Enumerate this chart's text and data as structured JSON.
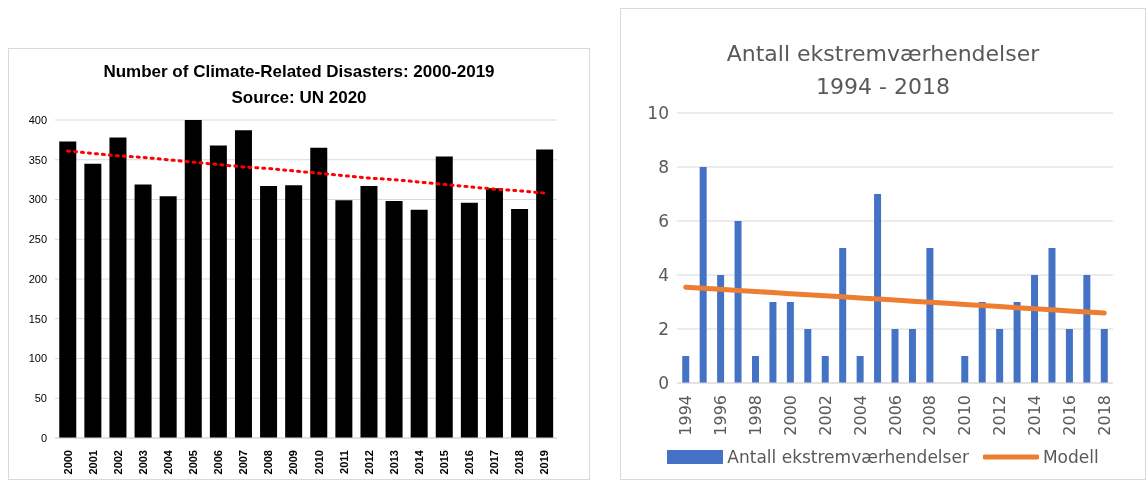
{
  "chart_data": [
    {
      "type": "bar",
      "title": "Number of Climate-Related Disasters: 2000-2019",
      "subtitle": "Source: UN 2020",
      "categories": [
        "2000",
        "2001",
        "2002",
        "2003",
        "2004",
        "2005",
        "2006",
        "2007",
        "2008",
        "2009",
        "2010",
        "2011",
        "2012",
        "2013",
        "2014",
        "2015",
        "2016",
        "2017",
        "2018",
        "2019"
      ],
      "series": [
        {
          "color": "#000000",
          "values": [
            373,
            345,
            378,
            319,
            304,
            400,
            368,
            387,
            317,
            318,
            365,
            299,
            317,
            298,
            287,
            354,
            296,
            314,
            288,
            363
          ]
        },
        {
          "type": "line",
          "color": "#ff0000",
          "line_style": "dotted",
          "values": [
            361,
            358,
            355,
            353,
            350,
            347,
            344,
            341,
            339,
            336,
            333,
            330,
            327,
            325,
            322,
            319,
            316,
            313,
            311,
            308
          ]
        }
      ],
      "ylim": [
        0,
        400
      ],
      "yticks": [
        0,
        50,
        100,
        150,
        200,
        250,
        300,
        350,
        400
      ],
      "grid": "y",
      "legend": false,
      "marker": "none"
    },
    {
      "type": "bar",
      "title": "Antall ekstremværhendelser",
      "subtitle": "1994 - 2018",
      "categories": [
        "1994",
        null,
        "1996",
        null,
        "1998",
        null,
        "2000",
        null,
        "2002",
        null,
        "2004",
        null,
        "2006",
        null,
        "2008",
        null,
        "2010",
        null,
        "2012",
        null,
        "2014",
        null,
        "2016",
        null,
        "2018"
      ],
      "series": [
        {
          "name": "Antall ekstremværhendelser",
          "color": "#4472c4",
          "values": [
            1,
            8,
            4,
            6,
            1,
            3,
            3,
            2,
            1,
            5,
            1,
            7,
            2,
            2,
            5,
            0,
            1,
            3,
            2,
            3,
            4,
            5,
            2,
            4,
            2
          ]
        },
        {
          "type": "line",
          "name": "Modell",
          "color": "#ed7d31",
          "line_style": "solid",
          "values": [
            3.55,
            3.51,
            3.47,
            3.43,
            3.39,
            3.35,
            3.31,
            3.27,
            3.23,
            3.19,
            3.15,
            3.11,
            3.07,
            3.03,
            2.99,
            2.95,
            2.91,
            2.87,
            2.83,
            2.79,
            2.75,
            2.71,
            2.67,
            2.63,
            2.59
          ]
        }
      ],
      "ylim": [
        0,
        10
      ],
      "yticks": [
        0,
        2,
        4,
        6,
        8,
        10
      ],
      "grid": "y",
      "legend": "bottom",
      "marker": "none"
    }
  ]
}
